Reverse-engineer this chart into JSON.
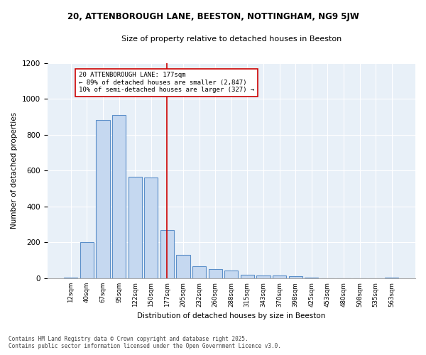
{
  "title": "20, ATTENBOROUGH LANE, BEESTON, NOTTINGHAM, NG9 5JW",
  "subtitle": "Size of property relative to detached houses in Beeston",
  "xlabel": "Distribution of detached houses by size in Beeston",
  "ylabel": "Number of detached properties",
  "footnote1": "Contains HM Land Registry data © Crown copyright and database right 2025.",
  "footnote2": "Contains public sector information licensed under the Open Government Licence v3.0.",
  "annotation_line1": "20 ATTENBOROUGH LANE: 177sqm",
  "annotation_line2": "← 89% of detached houses are smaller (2,847)",
  "annotation_line3": "10% of semi-detached houses are larger (327) →",
  "bar_color": "#c5d8f0",
  "bar_edge_color": "#5b8fc9",
  "vline_color": "#cc0000",
  "vline_x": 6,
  "categories": [
    0,
    1,
    2,
    3,
    4,
    5,
    6,
    7,
    8,
    9,
    10,
    11,
    12,
    13,
    14,
    15,
    16,
    17,
    18,
    19,
    20
  ],
  "cat_labels": [
    "12sqm",
    "40sqm",
    "67sqm",
    "95sqm",
    "122sqm",
    "150sqm",
    "177sqm",
    "205sqm",
    "232sqm",
    "260sqm",
    "288sqm",
    "315sqm",
    "343sqm",
    "370sqm",
    "398sqm",
    "425sqm",
    "453sqm",
    "480sqm",
    "508sqm",
    "535sqm",
    "563sqm"
  ],
  "values": [
    5,
    200,
    880,
    910,
    565,
    560,
    270,
    130,
    65,
    50,
    45,
    20,
    15,
    15,
    10,
    3,
    0,
    0,
    0,
    0,
    3
  ],
  "ylim": [
    0,
    1200
  ],
  "yticks": [
    0,
    200,
    400,
    600,
    800,
    1000,
    1200
  ],
  "background_color": "#e8f0f8",
  "fig_bg": "#ffffff",
  "grid_color": "#ffffff"
}
